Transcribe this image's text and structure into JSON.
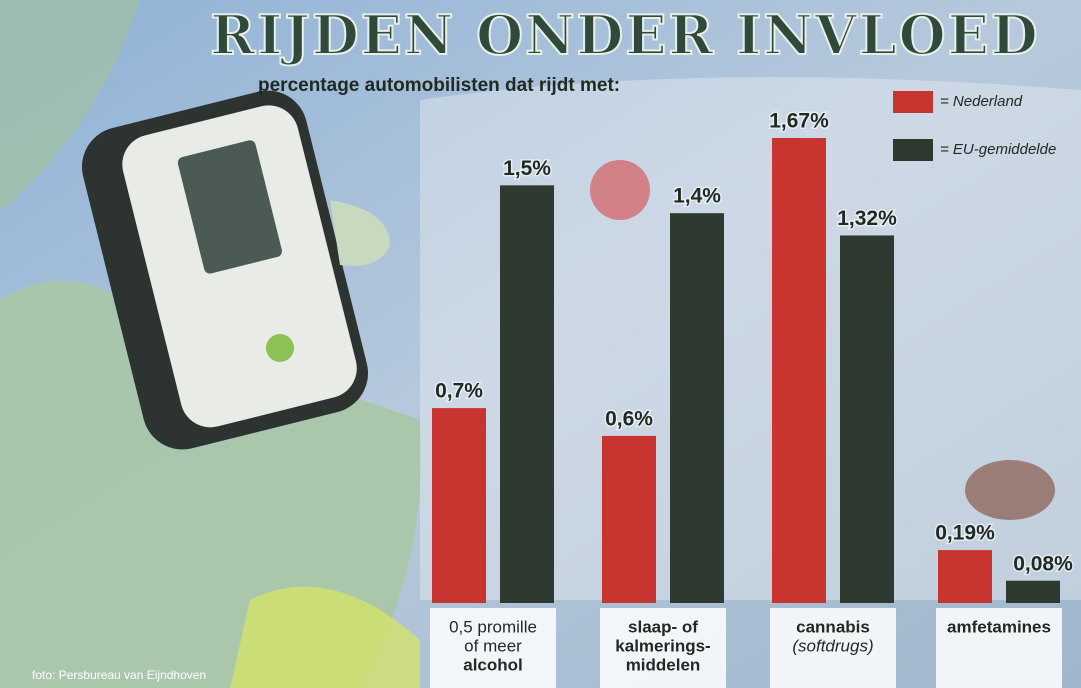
{
  "chart_data": {
    "type": "bar",
    "title": "RIJDEN ONDER INVLOED",
    "subtitle": "percentage automobilisten dat rijdt met:",
    "credit": "foto: Persbureau van Eijndhoven",
    "categories": [
      [
        "0,5 promille",
        "of meer",
        "alcohol"
      ],
      [
        "slaap- of",
        "kalmerings-",
        "middelen"
      ],
      [
        "cannabis",
        "(softdrugs)"
      ],
      [
        "amfetamines"
      ]
    ],
    "series": [
      {
        "name": "= Nederland",
        "color": "#c8342f",
        "values": [
          0.7,
          0.6,
          1.67,
          0.19
        ],
        "value_labels": [
          "0,7%",
          "0,6%",
          "1,67%",
          "0,19%"
        ]
      },
      {
        "name": "= EU-gemiddelde",
        "color": "#2e3a30",
        "values": [
          1.5,
          1.4,
          1.32,
          0.08
        ],
        "value_labels": [
          "1,5%",
          "1,4%",
          "1,32%",
          "0,08%"
        ]
      }
    ],
    "legend": "top-right"
  }
}
